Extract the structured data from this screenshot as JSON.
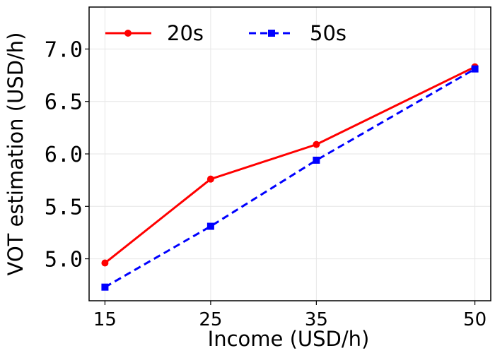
{
  "chart_data": {
    "type": "line",
    "x": [
      15,
      25,
      35,
      50
    ],
    "x_tick_labels": [
      "15",
      "25",
      "35",
      "50"
    ],
    "y_ticks": [
      5.0,
      5.5,
      6.0,
      6.5,
      7.0
    ],
    "y_tick_labels": [
      "5.0",
      "5.5",
      "6.0",
      "6.5",
      "7.0"
    ],
    "xlabel": "Income (USD/h)",
    "ylabel": "VOT estimation (USD/h)",
    "xlim": [
      13.5,
      51.5
    ],
    "ylim": [
      4.6,
      7.4
    ],
    "grid": true,
    "legend_position": "top",
    "series": [
      {
        "name": "20s",
        "values": [
          4.96,
          5.76,
          6.09,
          6.83
        ],
        "color": "#ff0000",
        "marker": "circle",
        "linestyle": "solid"
      },
      {
        "name": "50s",
        "values": [
          4.73,
          5.31,
          5.94,
          6.81
        ],
        "color": "#0000ff",
        "marker": "square",
        "linestyle": "dashed"
      }
    ]
  }
}
